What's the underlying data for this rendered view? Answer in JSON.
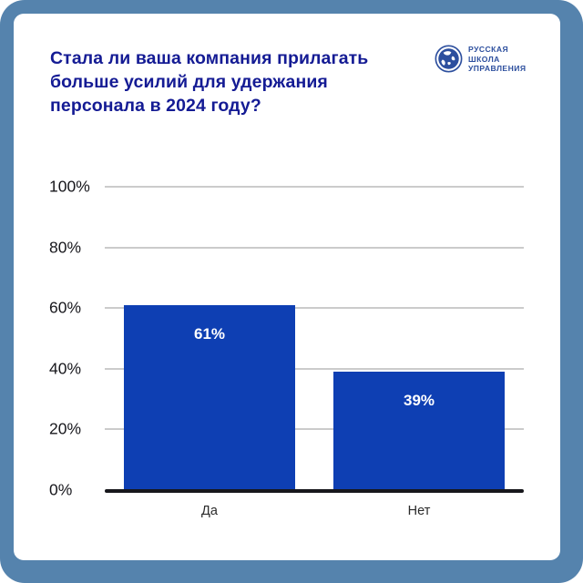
{
  "frame": {
    "border_color": "#5583ad",
    "card_color": "#ffffff"
  },
  "header": {
    "title": "Стала ли ваша компания прилагать больше усилий для удержания персонала в 2024 году?",
    "title_lines": [
      "Стала ли ваша компания прилагать",
      "больше усилий для удержания",
      "персонала в 2024 году?"
    ],
    "title_color": "#141b94"
  },
  "logo": {
    "icon": "globe-icon",
    "lines": [
      "РУССКАЯ",
      "ШКОЛА",
      "УПРАВЛЕНИЯ"
    ],
    "color": "#2d4f9e"
  },
  "chart_data": {
    "type": "bar",
    "title": "Стала ли ваша компания прилагать больше усилий для удержания персонала в 2024 году?",
    "categories": [
      "Да",
      "Нет"
    ],
    "values": [
      61,
      39
    ],
    "value_labels": [
      "61%",
      "39%"
    ],
    "y_ticks": [
      "0%",
      "20%",
      "40%",
      "60%",
      "80%",
      "100%"
    ],
    "ylim": [
      0,
      100
    ],
    "grid": true,
    "legend": "none",
    "bar_color": "#0e3fb3",
    "value_label_color": "#ffffff",
    "grid_color": "#cbcbcb",
    "axis_color": "#17171c"
  }
}
